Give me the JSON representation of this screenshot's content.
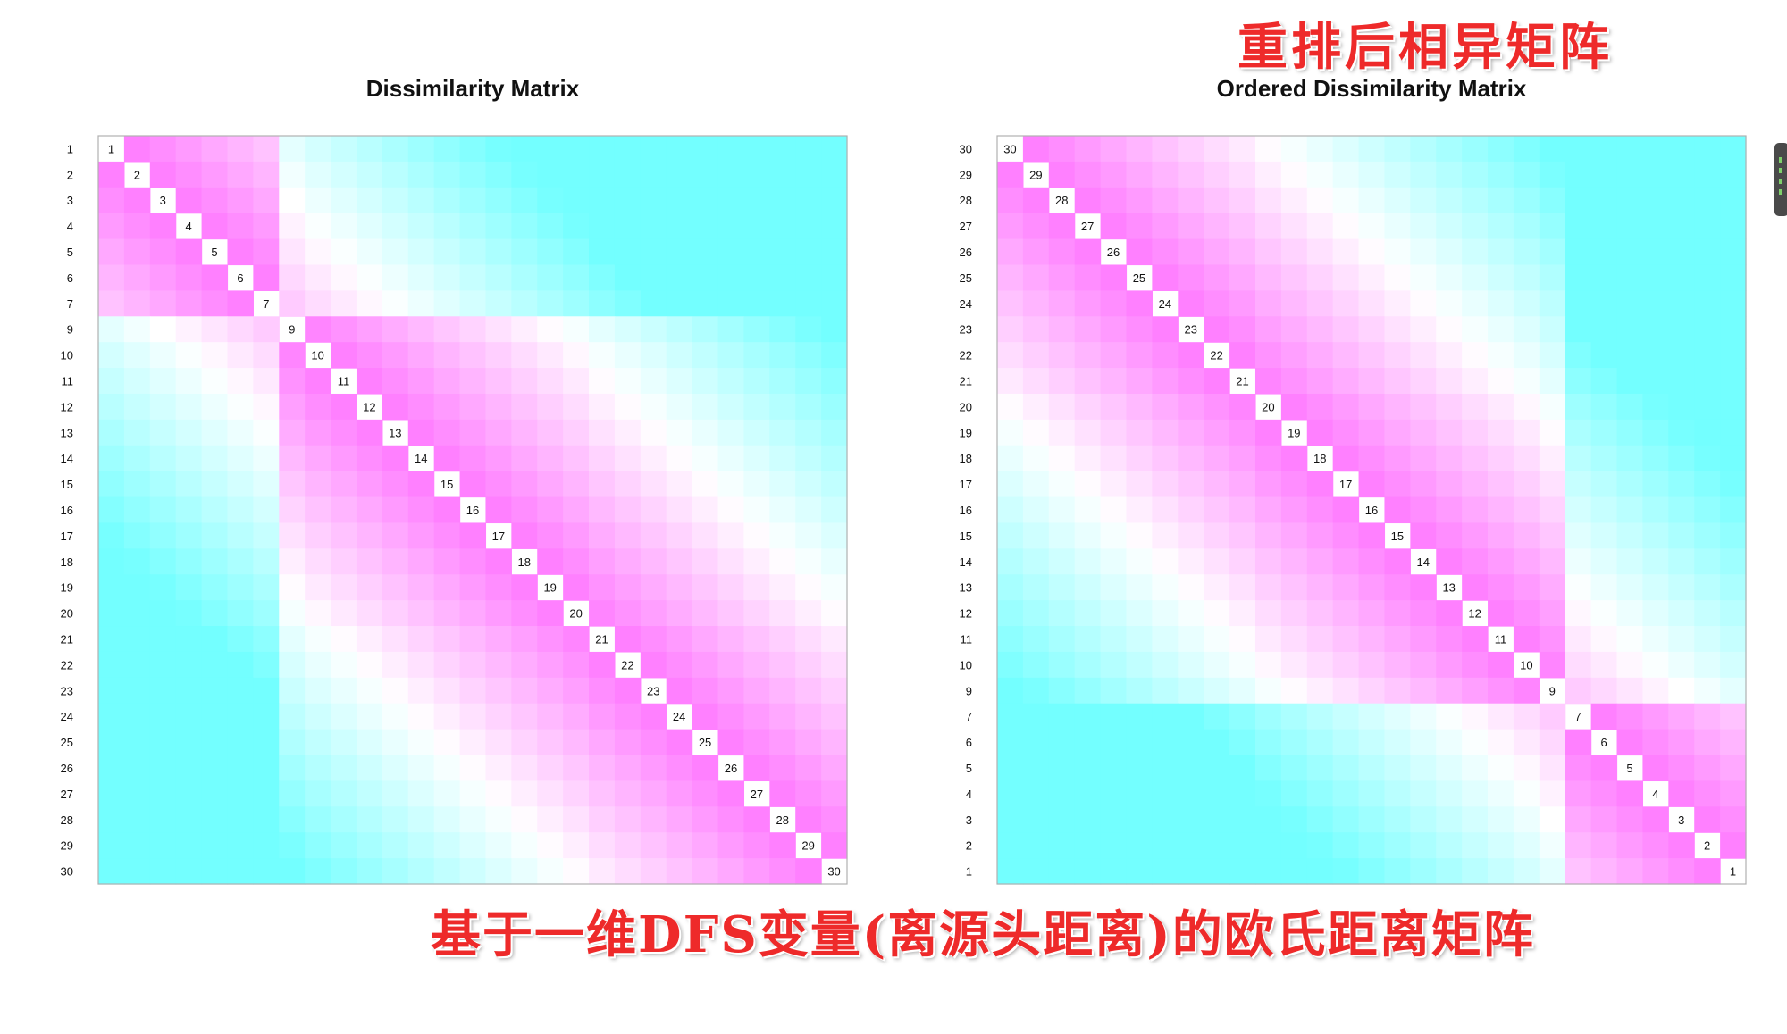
{
  "annotations": {
    "top_heading": "重排后相异矩阵",
    "bottom_caption": "基于一维DFS变量(离源头距离)的欧氏距离矩阵"
  },
  "colors": {
    "low": "#ff73ff",
    "mid": "#ffffff",
    "high": "#73ffff",
    "grid": "#b0b0b0",
    "label_box": "#ffffff",
    "text": "#111111"
  },
  "chart_data": [
    {
      "type": "heatmap",
      "title": "Dissimilarity Matrix",
      "row_labels": [
        "1",
        "2",
        "3",
        "4",
        "5",
        "6",
        "7",
        "9",
        "10",
        "11",
        "12",
        "13",
        "14",
        "15",
        "16",
        "17",
        "18",
        "19",
        "20",
        "21",
        "22",
        "23",
        "24",
        "25",
        "26",
        "27",
        "28",
        "29",
        "30"
      ],
      "diagonal_labels": [
        "1",
        "2",
        "3",
        "4",
        "5",
        "6",
        "7",
        "9",
        "10",
        "11",
        "12",
        "13",
        "14",
        "15",
        "16",
        "17",
        "18",
        "19",
        "20",
        "21",
        "22",
        "23",
        "24",
        "25",
        "26",
        "27",
        "28",
        "29",
        "30"
      ],
      "values": "pairwise Euclidean distance of a 1-D variable, shown by color: pink = small, white = medium, cyan = large",
      "distance_positions": [
        0.0,
        0.03,
        0.06,
        0.09,
        0.12,
        0.15,
        0.18,
        0.38,
        0.42,
        0.45,
        0.48,
        0.51,
        0.54,
        0.57,
        0.6,
        0.63,
        0.66,
        0.69,
        0.72,
        0.76,
        0.79,
        0.82,
        0.85,
        0.88,
        0.91,
        0.94,
        0.97,
        1.0,
        1.03
      ]
    },
    {
      "type": "heatmap",
      "title": "Ordered Dissimilarity Matrix",
      "row_labels": [
        "30",
        "29",
        "28",
        "27",
        "26",
        "25",
        "24",
        "23",
        "22",
        "21",
        "20",
        "19",
        "18",
        "17",
        "16",
        "15",
        "14",
        "13",
        "12",
        "11",
        "10",
        "9",
        "7",
        "6",
        "5",
        "4",
        "3",
        "2",
        "1"
      ],
      "diagonal_labels": [
        "30",
        "29",
        "28",
        "27",
        "26",
        "25",
        "24",
        "23",
        "22",
        "21",
        "20",
        "19",
        "18",
        "17",
        "16",
        "15",
        "14",
        "13",
        "12",
        "11",
        "10",
        "9",
        "7",
        "6",
        "5",
        "4",
        "3",
        "2",
        "1"
      ],
      "values": "same distances reordered by seriation",
      "distance_positions": [
        1.03,
        1.0,
        0.97,
        0.94,
        0.91,
        0.88,
        0.85,
        0.82,
        0.79,
        0.76,
        0.72,
        0.69,
        0.66,
        0.63,
        0.6,
        0.57,
        0.54,
        0.51,
        0.48,
        0.45,
        0.42,
        0.38,
        0.18,
        0.15,
        0.12,
        0.09,
        0.06,
        0.03,
        0.0
      ]
    }
  ]
}
